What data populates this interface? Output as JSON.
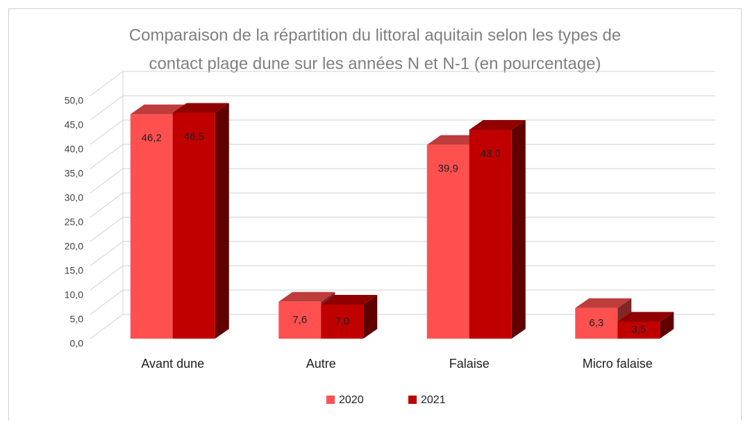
{
  "chart_data": {
    "type": "bar3d",
    "title": [
      "Comparaison de la répartition du littoral aquitain selon les types de",
      "contact plage dune sur les années N et N-1 (en pourcentage)"
    ],
    "categories": [
      "Avant dune",
      "Autre",
      "Falaise",
      "Micro falaise"
    ],
    "series": [
      {
        "name": "2020",
        "color": "#ff5050",
        "values": [
          46.2,
          7.6,
          39.9,
          6.3
        ],
        "value_labels": [
          "46,2",
          "7,6",
          "39,9",
          "6,3"
        ]
      },
      {
        "name": "2021",
        "color": "#c00000",
        "values": [
          46.5,
          7.0,
          43.0,
          3.5
        ],
        "value_labels": [
          "46,5",
          "7,0",
          "43,0",
          "3,5"
        ]
      }
    ],
    "ylim": [
      0,
      50
    ],
    "yticks": [
      {
        "value": 0,
        "label": "0,0"
      },
      {
        "value": 5,
        "label": "5,0"
      },
      {
        "value": 10,
        "label": "10,0"
      },
      {
        "value": 15,
        "label": "15,0"
      },
      {
        "value": 20,
        "label": "20,0"
      },
      {
        "value": 25,
        "label": "25,0"
      },
      {
        "value": 30,
        "label": "30,0"
      },
      {
        "value": 35,
        "label": "35,0"
      },
      {
        "value": 40,
        "label": "40,0"
      },
      {
        "value": 45,
        "label": "45,0"
      },
      {
        "value": 50,
        "label": "50,0"
      }
    ],
    "grid": true,
    "legend": "bottom"
  }
}
